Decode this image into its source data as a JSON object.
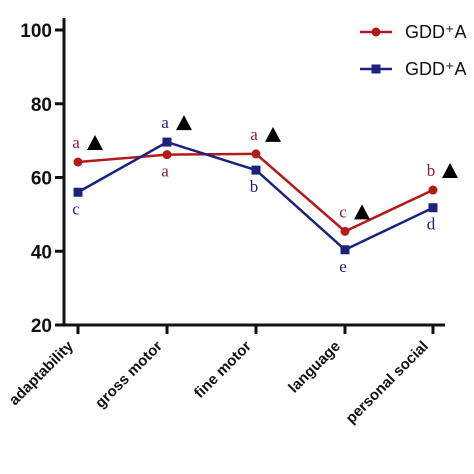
{
  "chart_data": {
    "type": "line",
    "title": "",
    "xlabel": "",
    "ylabel": "",
    "categories": [
      "adaptability",
      "gross motor",
      "fine motor",
      "language",
      "personal social"
    ],
    "ylim": [
      20,
      100
    ],
    "y_ticks": [
      "20",
      "40",
      "60",
      "80",
      "100"
    ],
    "grid": false,
    "legend_position": "top-right",
    "series": [
      {
        "name": "GDD⁺A",
        "color": "#b31b1b",
        "marker": "circle",
        "values": [
          64.2,
          66.2,
          66.4,
          45.4,
          56.6
        ],
        "letters": [
          "a",
          "a",
          "a",
          "c",
          "b"
        ],
        "letter_color": "#8b1a4a",
        "letter_position": [
          "above",
          "below",
          "above",
          "above",
          "above"
        ],
        "triangle": [
          true,
          false,
          true,
          true,
          true
        ]
      },
      {
        "name": "GDD⁺A",
        "color": "#1a237e",
        "marker": "square",
        "values": [
          56.0,
          69.6,
          62.0,
          40.4,
          51.8
        ],
        "letters": [
          "c",
          "a",
          "b",
          "e",
          "d"
        ],
        "letter_color": "#1a237e",
        "letter_position": [
          "below",
          "above",
          "below",
          "below",
          "below"
        ],
        "triangle": [
          false,
          true,
          false,
          false,
          false
        ]
      }
    ],
    "legend": [
      {
        "label": "GDD⁺A",
        "color": "#b31b1b",
        "marker": "circle"
      },
      {
        "label": "GDD⁺A",
        "color": "#1a237e",
        "marker": "square"
      }
    ]
  }
}
